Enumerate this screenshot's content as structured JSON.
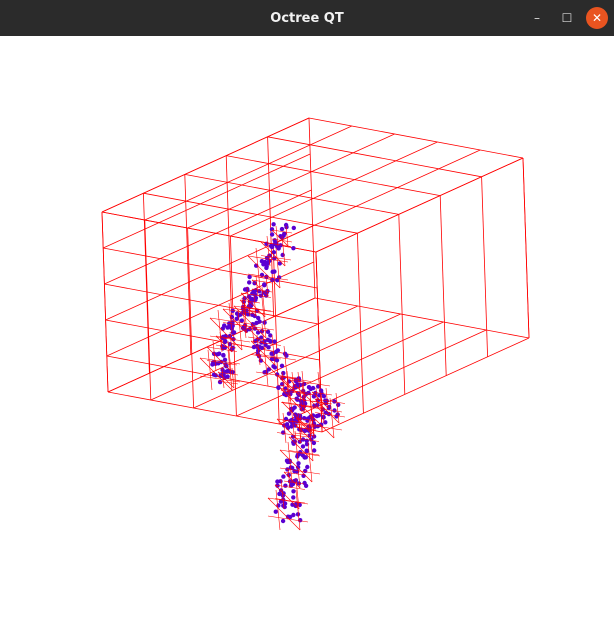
{
  "window": {
    "title": "Octree QT",
    "controls": {
      "minimize_icon": "minimize-icon",
      "maximize_icon": "maximize-icon",
      "close_icon": "close-icon"
    },
    "minimize_glyph": "–",
    "maximize_glyph": "☐",
    "close_glyph": "✕"
  },
  "colors": {
    "titlebar": "#2b2b2b",
    "octree_lines": "#ff0000",
    "point_cloud": "#5a00d2",
    "background": "#ffffff",
    "close_button": "#e95420"
  }
}
